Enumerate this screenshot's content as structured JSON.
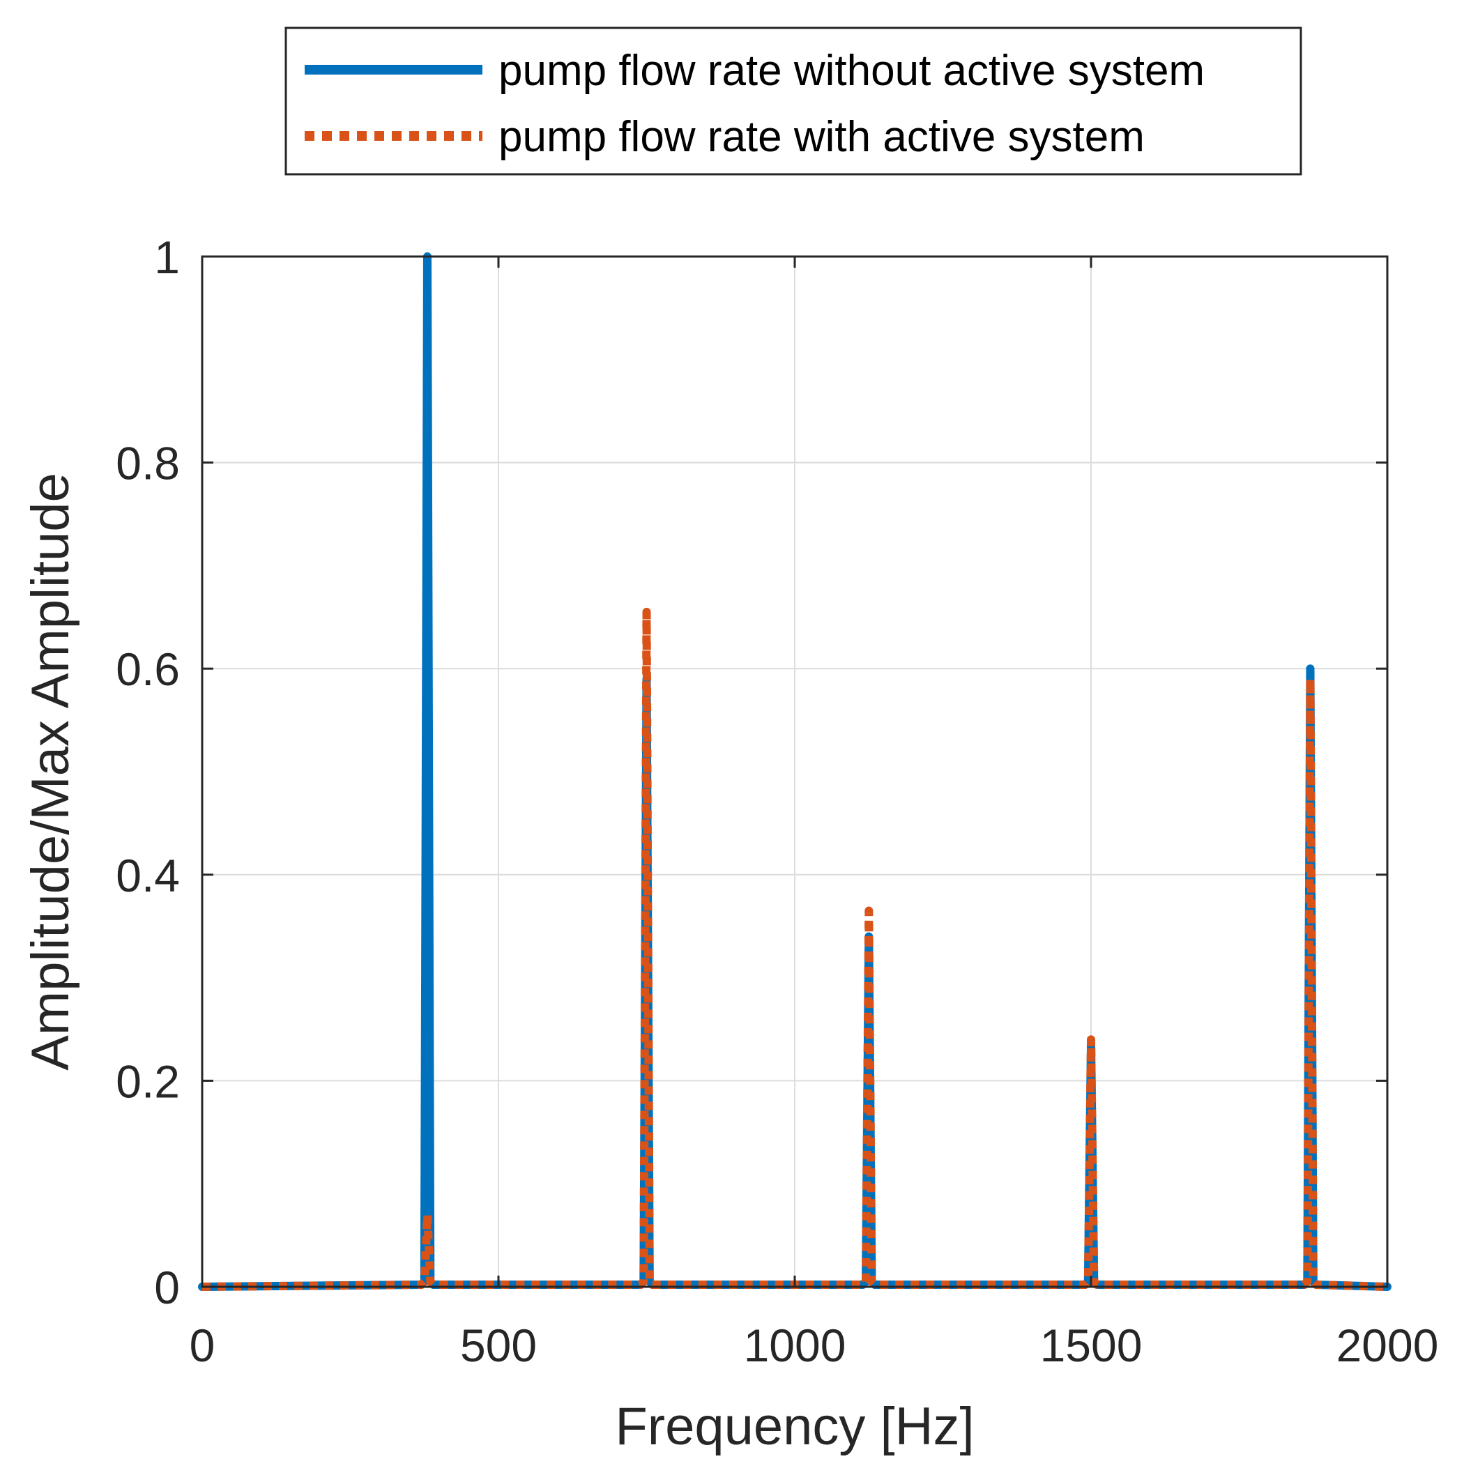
{
  "chart_data": {
    "type": "line",
    "title": "",
    "xlabel": "Frequency [Hz]",
    "ylabel": "Amplitude/Max Amplitude",
    "xlim": [
      0,
      2000
    ],
    "ylim": [
      0,
      1
    ],
    "xticks": [
      0,
      500,
      1000,
      1500,
      2000
    ],
    "xtick_labels": [
      "0",
      "500",
      "1000",
      "1500",
      "2000"
    ],
    "yticks": [
      0,
      0.2,
      0.4,
      0.6,
      0.8,
      1
    ],
    "ytick_labels": [
      "0",
      "0.2",
      "0.4",
      "0.6",
      "0.8",
      "1"
    ],
    "grid": true,
    "legend_position": "top-outside",
    "series": [
      {
        "name": "pump flow rate without active system",
        "style": "solid",
        "color": "#0072BD",
        "x": [
          0,
          370,
          375,
          380,
          385,
          390,
          740,
          745,
          750,
          755,
          760,
          1115,
          1120,
          1125,
          1130,
          1135,
          1490,
          1495,
          1500,
          1505,
          1510,
          1860,
          1865,
          1870,
          1875,
          1880,
          2000
        ],
        "y": [
          0,
          0.002,
          0.005,
          1.0,
          0.005,
          0.002,
          0.002,
          0.005,
          0.59,
          0.005,
          0.002,
          0.002,
          0.005,
          0.34,
          0.005,
          0.002,
          0.002,
          0.005,
          0.235,
          0.005,
          0.002,
          0.002,
          0.005,
          0.6,
          0.005,
          0.002,
          0
        ]
      },
      {
        "name": "pump flow rate with active system",
        "style": "dotted",
        "color": "#D95319",
        "x": [
          0,
          370,
          375,
          380,
          385,
          390,
          740,
          745,
          750,
          755,
          760,
          1115,
          1120,
          1125,
          1130,
          1135,
          1490,
          1495,
          1500,
          1505,
          1510,
          1860,
          1865,
          1870,
          1875,
          1880,
          2000
        ],
        "y": [
          0,
          0.002,
          0.005,
          0.07,
          0.005,
          0.002,
          0.002,
          0.005,
          0.655,
          0.005,
          0.002,
          0.002,
          0.005,
          0.365,
          0.005,
          0.002,
          0.002,
          0.005,
          0.24,
          0.005,
          0.002,
          0.002,
          0.005,
          0.59,
          0.005,
          0.002,
          0
        ]
      }
    ]
  }
}
